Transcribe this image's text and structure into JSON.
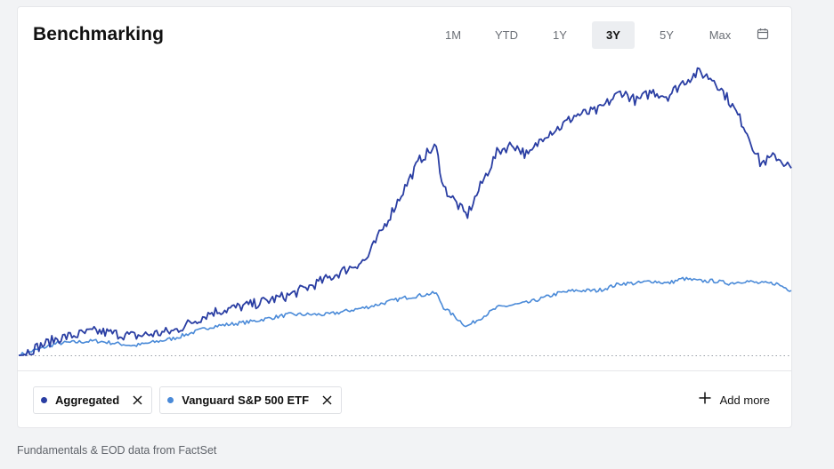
{
  "header": {
    "title": "Benchmarking"
  },
  "ranges": [
    {
      "label": "1M",
      "active": false
    },
    {
      "label": "YTD",
      "active": false
    },
    {
      "label": "1Y",
      "active": false
    },
    {
      "label": "3Y",
      "active": true
    },
    {
      "label": "5Y",
      "active": false
    },
    {
      "label": "Max",
      "active": false
    }
  ],
  "icons": {
    "calendar": "calendar-icon",
    "close": "close-icon",
    "add": "plus-icon"
  },
  "legend": [
    {
      "label": "Aggregated",
      "color": "#2a3ea3"
    },
    {
      "label": "Vanguard S&P 500 ETF",
      "color": "#4a8ad8"
    }
  ],
  "add_more_label": "Add more",
  "footer": {
    "text": "Fundamentals & EOD data from FactSet"
  },
  "chart_data": {
    "type": "line",
    "x": [
      0,
      0.05,
      0.1,
      0.15,
      0.2,
      0.25,
      0.3,
      0.35,
      0.4,
      0.45,
      0.5,
      0.52,
      0.54,
      0.55,
      0.58,
      0.6,
      0.62,
      0.64,
      0.66,
      0.68,
      0.7,
      0.72,
      0.75,
      0.78,
      0.8,
      0.82,
      0.84,
      0.86,
      0.88,
      0.9,
      0.92,
      0.94,
      0.96,
      0.98,
      1.0
    ],
    "series": [
      {
        "name": "Aggregated",
        "color": "#2a3ea3",
        "values": [
          0,
          0.07,
          0.1,
          0.08,
          0.1,
          0.18,
          0.21,
          0.25,
          0.32,
          0.4,
          0.7,
          0.82,
          0.87,
          0.7,
          0.58,
          0.72,
          0.85,
          0.88,
          0.83,
          0.92,
          0.95,
          1.0,
          1.02,
          1.1,
          1.06,
          1.1,
          1.08,
          1.14,
          1.18,
          1.15,
          1.06,
          0.95,
          0.8,
          0.83,
          0.78
        ]
      },
      {
        "name": "Vanguard S&P 500 ETF",
        "color": "#4a8ad8",
        "values": [
          0,
          0.05,
          0.06,
          0.04,
          0.07,
          0.12,
          0.14,
          0.17,
          0.17,
          0.2,
          0.24,
          0.25,
          0.26,
          0.2,
          0.12,
          0.16,
          0.2,
          0.21,
          0.22,
          0.24,
          0.26,
          0.27,
          0.27,
          0.3,
          0.3,
          0.31,
          0.3,
          0.32,
          0.31,
          0.31,
          0.3,
          0.31,
          0.3,
          0.3,
          0.27
        ]
      }
    ],
    "baseline": 0,
    "ylim": [
      0,
      1.2
    ],
    "grid": false,
    "legend_position": "bottom"
  }
}
